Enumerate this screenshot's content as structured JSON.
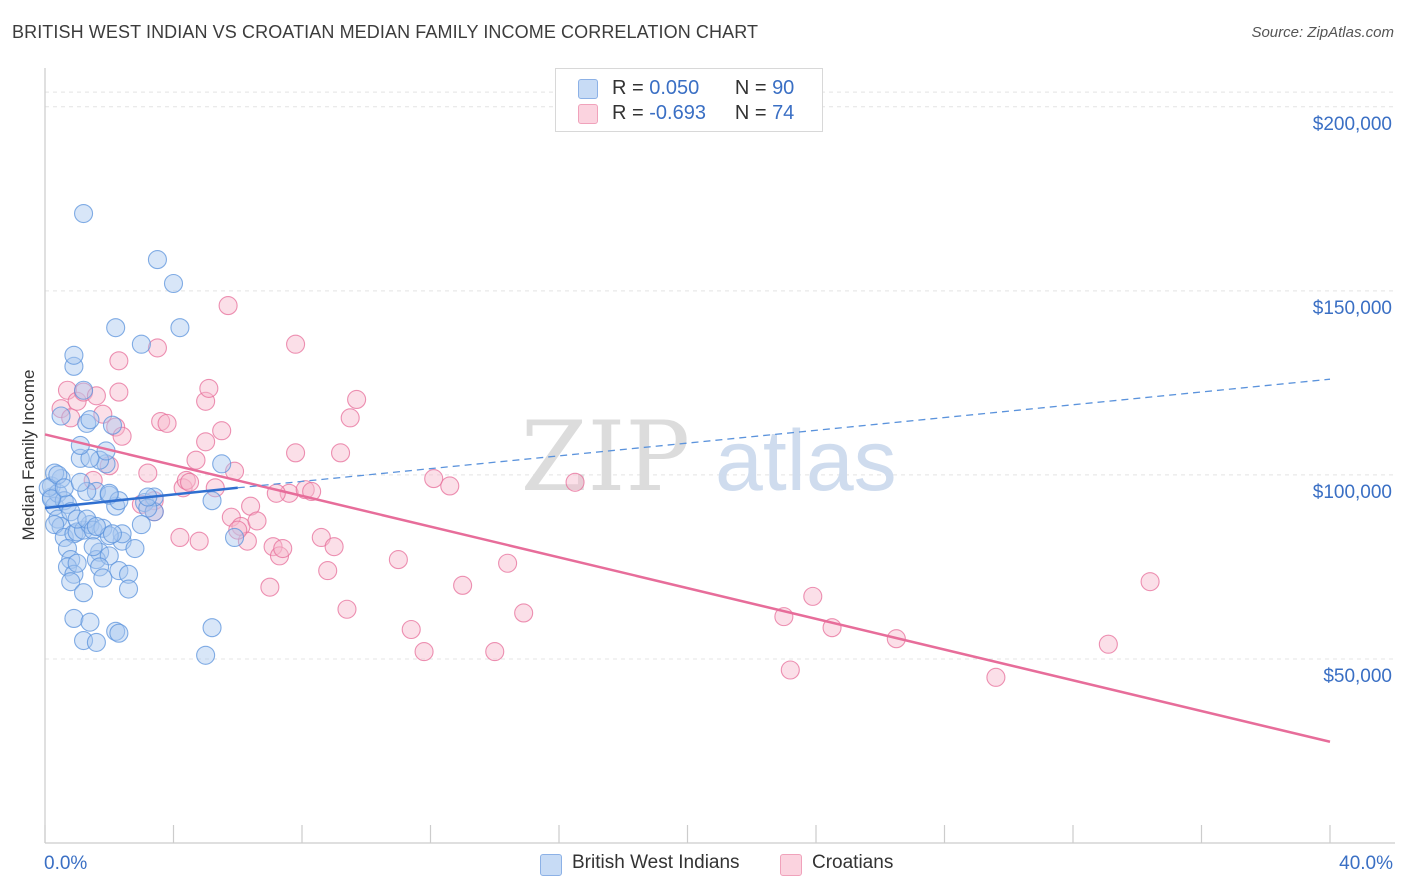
{
  "header": {
    "title": "BRITISH WEST INDIAN VS CROATIAN MEDIAN FAMILY INCOME CORRELATION CHART",
    "source": "Source: ZipAtlas.com"
  },
  "watermark": {
    "zip": "ZIP",
    "atlas": "atlas"
  },
  "legend": {
    "rows": [
      {
        "r_label": "R = ",
        "r_value": "0.050",
        "n_label": "N = ",
        "n_value": "90",
        "color": "#a9c8f0"
      },
      {
        "r_label": "R = ",
        "r_value": "-0.693",
        "n_label": "N = ",
        "n_value": "74",
        "color": "#f6b8cb"
      }
    ]
  },
  "bottom_legend": {
    "items": [
      {
        "label": "British West Indians",
        "color": "#a9c8f0"
      },
      {
        "label": "Croatians",
        "color": "#f6b8cb"
      }
    ]
  },
  "chart_data": {
    "type": "scatter",
    "title": "BRITISH WEST INDIAN VS CROATIAN MEDIAN FAMILY INCOME CORRELATION CHART",
    "xlabel": "",
    "ylabel": "Median Family Income",
    "xlim": [
      0,
      40
    ],
    "ylim": [
      0,
      210000
    ],
    "x_tick_labels": [
      "0.0%",
      "40.0%"
    ],
    "y_ticks": [
      50000,
      100000,
      150000,
      200000
    ],
    "y_tick_labels": [
      "$50,000",
      "$100,000",
      "$150,000",
      "$200,000"
    ],
    "grid": "horizontal dashed",
    "legend_position": "top-center",
    "series": [
      {
        "name": "British West Indians",
        "color": "#5b93dc",
        "fill": "#a9c8f0",
        "r": 0.05,
        "n": 90,
        "trend": {
          "x": [
            0,
            6
          ],
          "y": [
            91000,
            96500
          ],
          "extended_to": [
            40,
            126000
          ]
        },
        "points": [
          [
            0.2,
            94000
          ],
          [
            0.3,
            91500
          ],
          [
            0.2,
            97000
          ],
          [
            0.4,
            95000
          ],
          [
            0.5,
            99000
          ],
          [
            0.3,
            100500
          ],
          [
            0.6,
            93000
          ],
          [
            0.4,
            88000
          ],
          [
            0.5,
            86000
          ],
          [
            0.7,
            92000
          ],
          [
            0.8,
            90000
          ],
          [
            0.3,
            86500
          ],
          [
            0.6,
            83000
          ],
          [
            0.9,
            84000
          ],
          [
            0.7,
            80000
          ],
          [
            0.8,
            77000
          ],
          [
            0.7,
            75000
          ],
          [
            0.9,
            73000
          ],
          [
            1.0,
            76000
          ],
          [
            0.8,
            71000
          ],
          [
            0.9,
            61000
          ],
          [
            1.2,
            68000
          ],
          [
            1.4,
            60000
          ],
          [
            1.2,
            55000
          ],
          [
            1.6,
            54500
          ],
          [
            2.2,
            57500
          ],
          [
            2.3,
            57000
          ],
          [
            1.0,
            84500
          ],
          [
            1.2,
            85000
          ],
          [
            1.4,
            86500
          ],
          [
            1.0,
            88000
          ],
          [
            1.3,
            88000
          ],
          [
            1.5,
            85000
          ],
          [
            1.8,
            85500
          ],
          [
            1.7,
            79000
          ],
          [
            1.6,
            77000
          ],
          [
            2.0,
            78000
          ],
          [
            1.7,
            75000
          ],
          [
            2.3,
            74000
          ],
          [
            2.6,
            73000
          ],
          [
            2.6,
            69000
          ],
          [
            1.8,
            72000
          ],
          [
            2.4,
            82000
          ],
          [
            2.4,
            84000
          ],
          [
            2.0,
            83500
          ],
          [
            2.2,
            91500
          ],
          [
            1.6,
            95500
          ],
          [
            1.3,
            95500
          ],
          [
            2.0,
            94500
          ],
          [
            2.3,
            93000
          ],
          [
            3.1,
            92500
          ],
          [
            3.4,
            90000
          ],
          [
            3.4,
            94000
          ],
          [
            3.2,
            91000
          ],
          [
            1.9,
            103000
          ],
          [
            1.7,
            104000
          ],
          [
            1.1,
            104500
          ],
          [
            1.4,
            104500
          ],
          [
            1.9,
            106500
          ],
          [
            1.1,
            108000
          ],
          [
            2.1,
            113500
          ],
          [
            1.3,
            114000
          ],
          [
            1.4,
            115000
          ],
          [
            0.5,
            116000
          ],
          [
            1.2,
            123000
          ],
          [
            0.9,
            129500
          ],
          [
            0.9,
            132500
          ],
          [
            2.2,
            140000
          ],
          [
            3.0,
            135500
          ],
          [
            4.2,
            140000
          ],
          [
            4.0,
            152000
          ],
          [
            3.5,
            158500
          ],
          [
            1.2,
            171000
          ],
          [
            5.2,
            93000
          ],
          [
            5.5,
            103000
          ],
          [
            5.9,
            83000
          ],
          [
            5.2,
            58500
          ],
          [
            5.0,
            51000
          ],
          [
            2.0,
            95000
          ],
          [
            2.8,
            80000
          ],
          [
            1.5,
            80500
          ],
          [
            3.0,
            86500
          ],
          [
            0.1,
            96500
          ],
          [
            0.2,
            93500
          ],
          [
            1.6,
            86000
          ],
          [
            3.2,
            94000
          ],
          [
            0.4,
            100000
          ],
          [
            2.1,
            84000
          ],
          [
            0.6,
            96500
          ],
          [
            1.1,
            98000
          ]
        ]
      },
      {
        "name": "Croatians",
        "color": "#e76d9a",
        "fill": "#f6b8cb",
        "r": -0.693,
        "n": 74,
        "trend": {
          "x": [
            0,
            40
          ],
          "y": [
            111000,
            27500
          ]
        },
        "points": [
          [
            0.5,
            118000
          ],
          [
            0.8,
            115500
          ],
          [
            0.7,
            123000
          ],
          [
            1.0,
            120000
          ],
          [
            1.2,
            122500
          ],
          [
            1.6,
            121500
          ],
          [
            1.8,
            116500
          ],
          [
            2.2,
            113000
          ],
          [
            2.4,
            110500
          ],
          [
            2.0,
            102500
          ],
          [
            1.5,
            98500
          ],
          [
            2.3,
            131000
          ],
          [
            2.3,
            122500
          ],
          [
            3.2,
            100500
          ],
          [
            3.4,
            93000
          ],
          [
            3.0,
            92000
          ],
          [
            3.4,
            90000
          ],
          [
            3.6,
            114500
          ],
          [
            3.8,
            114000
          ],
          [
            3.5,
            134500
          ],
          [
            4.2,
            83000
          ],
          [
            4.3,
            96500
          ],
          [
            4.4,
            98500
          ],
          [
            4.5,
            98000
          ],
          [
            4.8,
            82000
          ],
          [
            5.0,
            120000
          ],
          [
            5.0,
            109000
          ],
          [
            5.1,
            123500
          ],
          [
            5.3,
            96500
          ],
          [
            5.5,
            112000
          ],
          [
            5.8,
            88500
          ],
          [
            5.9,
            101000
          ],
          [
            5.7,
            146000
          ],
          [
            6.1,
            86000
          ],
          [
            6.3,
            82000
          ],
          [
            6.4,
            91500
          ],
          [
            6.6,
            87500
          ],
          [
            7.0,
            69500
          ],
          [
            7.1,
            80500
          ],
          [
            7.3,
            78000
          ],
          [
            7.4,
            80000
          ],
          [
            7.6,
            95000
          ],
          [
            7.8,
            106000
          ],
          [
            7.8,
            135500
          ],
          [
            8.1,
            96000
          ],
          [
            8.3,
            95500
          ],
          [
            8.6,
            83000
          ],
          [
            8.8,
            74000
          ],
          [
            9.0,
            80500
          ],
          [
            9.2,
            106000
          ],
          [
            9.4,
            63500
          ],
          [
            9.5,
            115500
          ],
          [
            9.7,
            120500
          ],
          [
            11.0,
            77000
          ],
          [
            11.4,
            58000
          ],
          [
            11.8,
            52000
          ],
          [
            12.1,
            99000
          ],
          [
            12.6,
            97000
          ],
          [
            13.0,
            70000
          ],
          [
            14.0,
            52000
          ],
          [
            14.4,
            76000
          ],
          [
            14.9,
            62500
          ],
          [
            16.5,
            98000
          ],
          [
            23.0,
            61500
          ],
          [
            23.2,
            47000
          ],
          [
            23.9,
            67000
          ],
          [
            24.5,
            58500
          ],
          [
            26.5,
            55500
          ],
          [
            29.6,
            45000
          ],
          [
            33.1,
            54000
          ],
          [
            34.4,
            71000
          ],
          [
            7.2,
            95000
          ],
          [
            4.7,
            104000
          ],
          [
            6.0,
            85000
          ]
        ]
      }
    ]
  }
}
